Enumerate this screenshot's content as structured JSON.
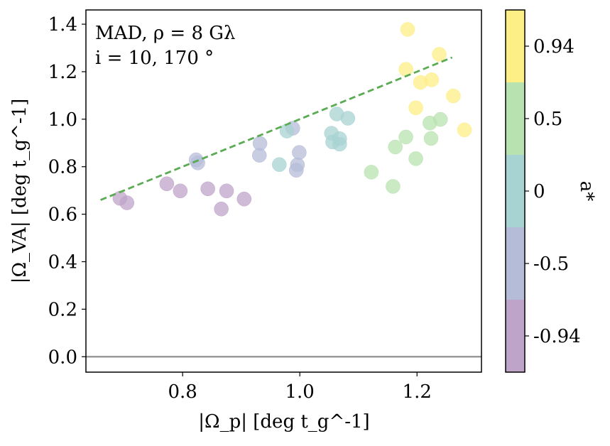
{
  "chart_data": {
    "type": "scatter",
    "xlabel": "|Ω_p| [deg t_g^-1]",
    "ylabel": "|Ω_VA| [deg t_g^-1]",
    "xlim": [
      0.635,
      1.31
    ],
    "ylim": [
      -0.065,
      1.46
    ],
    "xticks": [
      0.8,
      1.0,
      1.2
    ],
    "xtick_labels": [
      "0.8",
      "1.0",
      "1.2"
    ],
    "yticks": [
      0.0,
      0.2,
      0.4,
      0.6,
      0.8,
      1.0,
      1.2,
      1.4
    ],
    "ytick_labels": [
      "0.0",
      "0.2",
      "0.4",
      "0.6",
      "0.8",
      "1.0",
      "1.2",
      "1.4"
    ],
    "annotation_line1": "MAD, ρ = 8 Gλ",
    "annotation_line2": "i = 10, 170 °",
    "colorbar": {
      "label": "a*",
      "tick_labels": [
        "0.94",
        "0.5",
        "0",
        "-0.5",
        "-0.94"
      ],
      "colors": [
        "#fdee86",
        "#b8e3b0",
        "#a8d3d3",
        "#b5bcd8",
        "#bfa4c9"
      ]
    },
    "fit_line": {
      "x": [
        0.66,
        1.26
      ],
      "y": [
        0.66,
        1.26
      ],
      "color": "#5aab53"
    },
    "zero_line": {
      "y": 0.0,
      "color": "#999999"
    },
    "series": [
      {
        "name": "-0.94",
        "color": "#bfa4c9",
        "points": [
          {
            "x": 0.693,
            "y": 0.667
          },
          {
            "x": 0.705,
            "y": 0.648
          },
          {
            "x": 0.773,
            "y": 0.728
          },
          {
            "x": 0.796,
            "y": 0.698
          },
          {
            "x": 0.843,
            "y": 0.707
          },
          {
            "x": 0.875,
            "y": 0.698
          },
          {
            "x": 0.866,
            "y": 0.622
          },
          {
            "x": 0.905,
            "y": 0.664
          }
        ]
      },
      {
        "name": "-0.5",
        "color": "#b5bcd8",
        "points": [
          {
            "x": 0.823,
            "y": 0.829
          },
          {
            "x": 0.826,
            "y": 0.816
          },
          {
            "x": 0.932,
            "y": 0.898
          },
          {
            "x": 0.931,
            "y": 0.848
          },
          {
            "x": 0.988,
            "y": 0.962
          },
          {
            "x": 0.999,
            "y": 0.86
          },
          {
            "x": 0.996,
            "y": 0.808
          },
          {
            "x": 0.994,
            "y": 0.785
          }
        ]
      },
      {
        "name": "0",
        "color": "#a8d3d3",
        "points": [
          {
            "x": 0.965,
            "y": 0.809
          },
          {
            "x": 0.978,
            "y": 0.95
          },
          {
            "x": 1.054,
            "y": 0.941
          },
          {
            "x": 1.056,
            "y": 0.904
          },
          {
            "x": 1.063,
            "y": 1.022
          },
          {
            "x": 1.068,
            "y": 0.918
          },
          {
            "x": 1.068,
            "y": 0.895
          },
          {
            "x": 1.082,
            "y": 1.004
          }
        ]
      },
      {
        "name": "0.5",
        "color": "#b8e3b0",
        "points": [
          {
            "x": 1.122,
            "y": 0.777
          },
          {
            "x": 1.159,
            "y": 0.717
          },
          {
            "x": 1.163,
            "y": 0.883
          },
          {
            "x": 1.181,
            "y": 0.925
          },
          {
            "x": 1.198,
            "y": 0.834
          },
          {
            "x": 1.222,
            "y": 0.984
          },
          {
            "x": 1.224,
            "y": 0.919
          },
          {
            "x": 1.24,
            "y": 0.999
          }
        ]
      },
      {
        "name": "0.94",
        "color": "#fdee86",
        "points": [
          {
            "x": 1.184,
            "y": 1.378
          },
          {
            "x": 1.181,
            "y": 1.21
          },
          {
            "x": 1.198,
            "y": 1.048
          },
          {
            "x": 1.206,
            "y": 1.155
          },
          {
            "x": 1.225,
            "y": 1.166
          },
          {
            "x": 1.238,
            "y": 1.273
          },
          {
            "x": 1.262,
            "y": 1.098
          },
          {
            "x": 1.281,
            "y": 0.955
          }
        ]
      }
    ]
  }
}
